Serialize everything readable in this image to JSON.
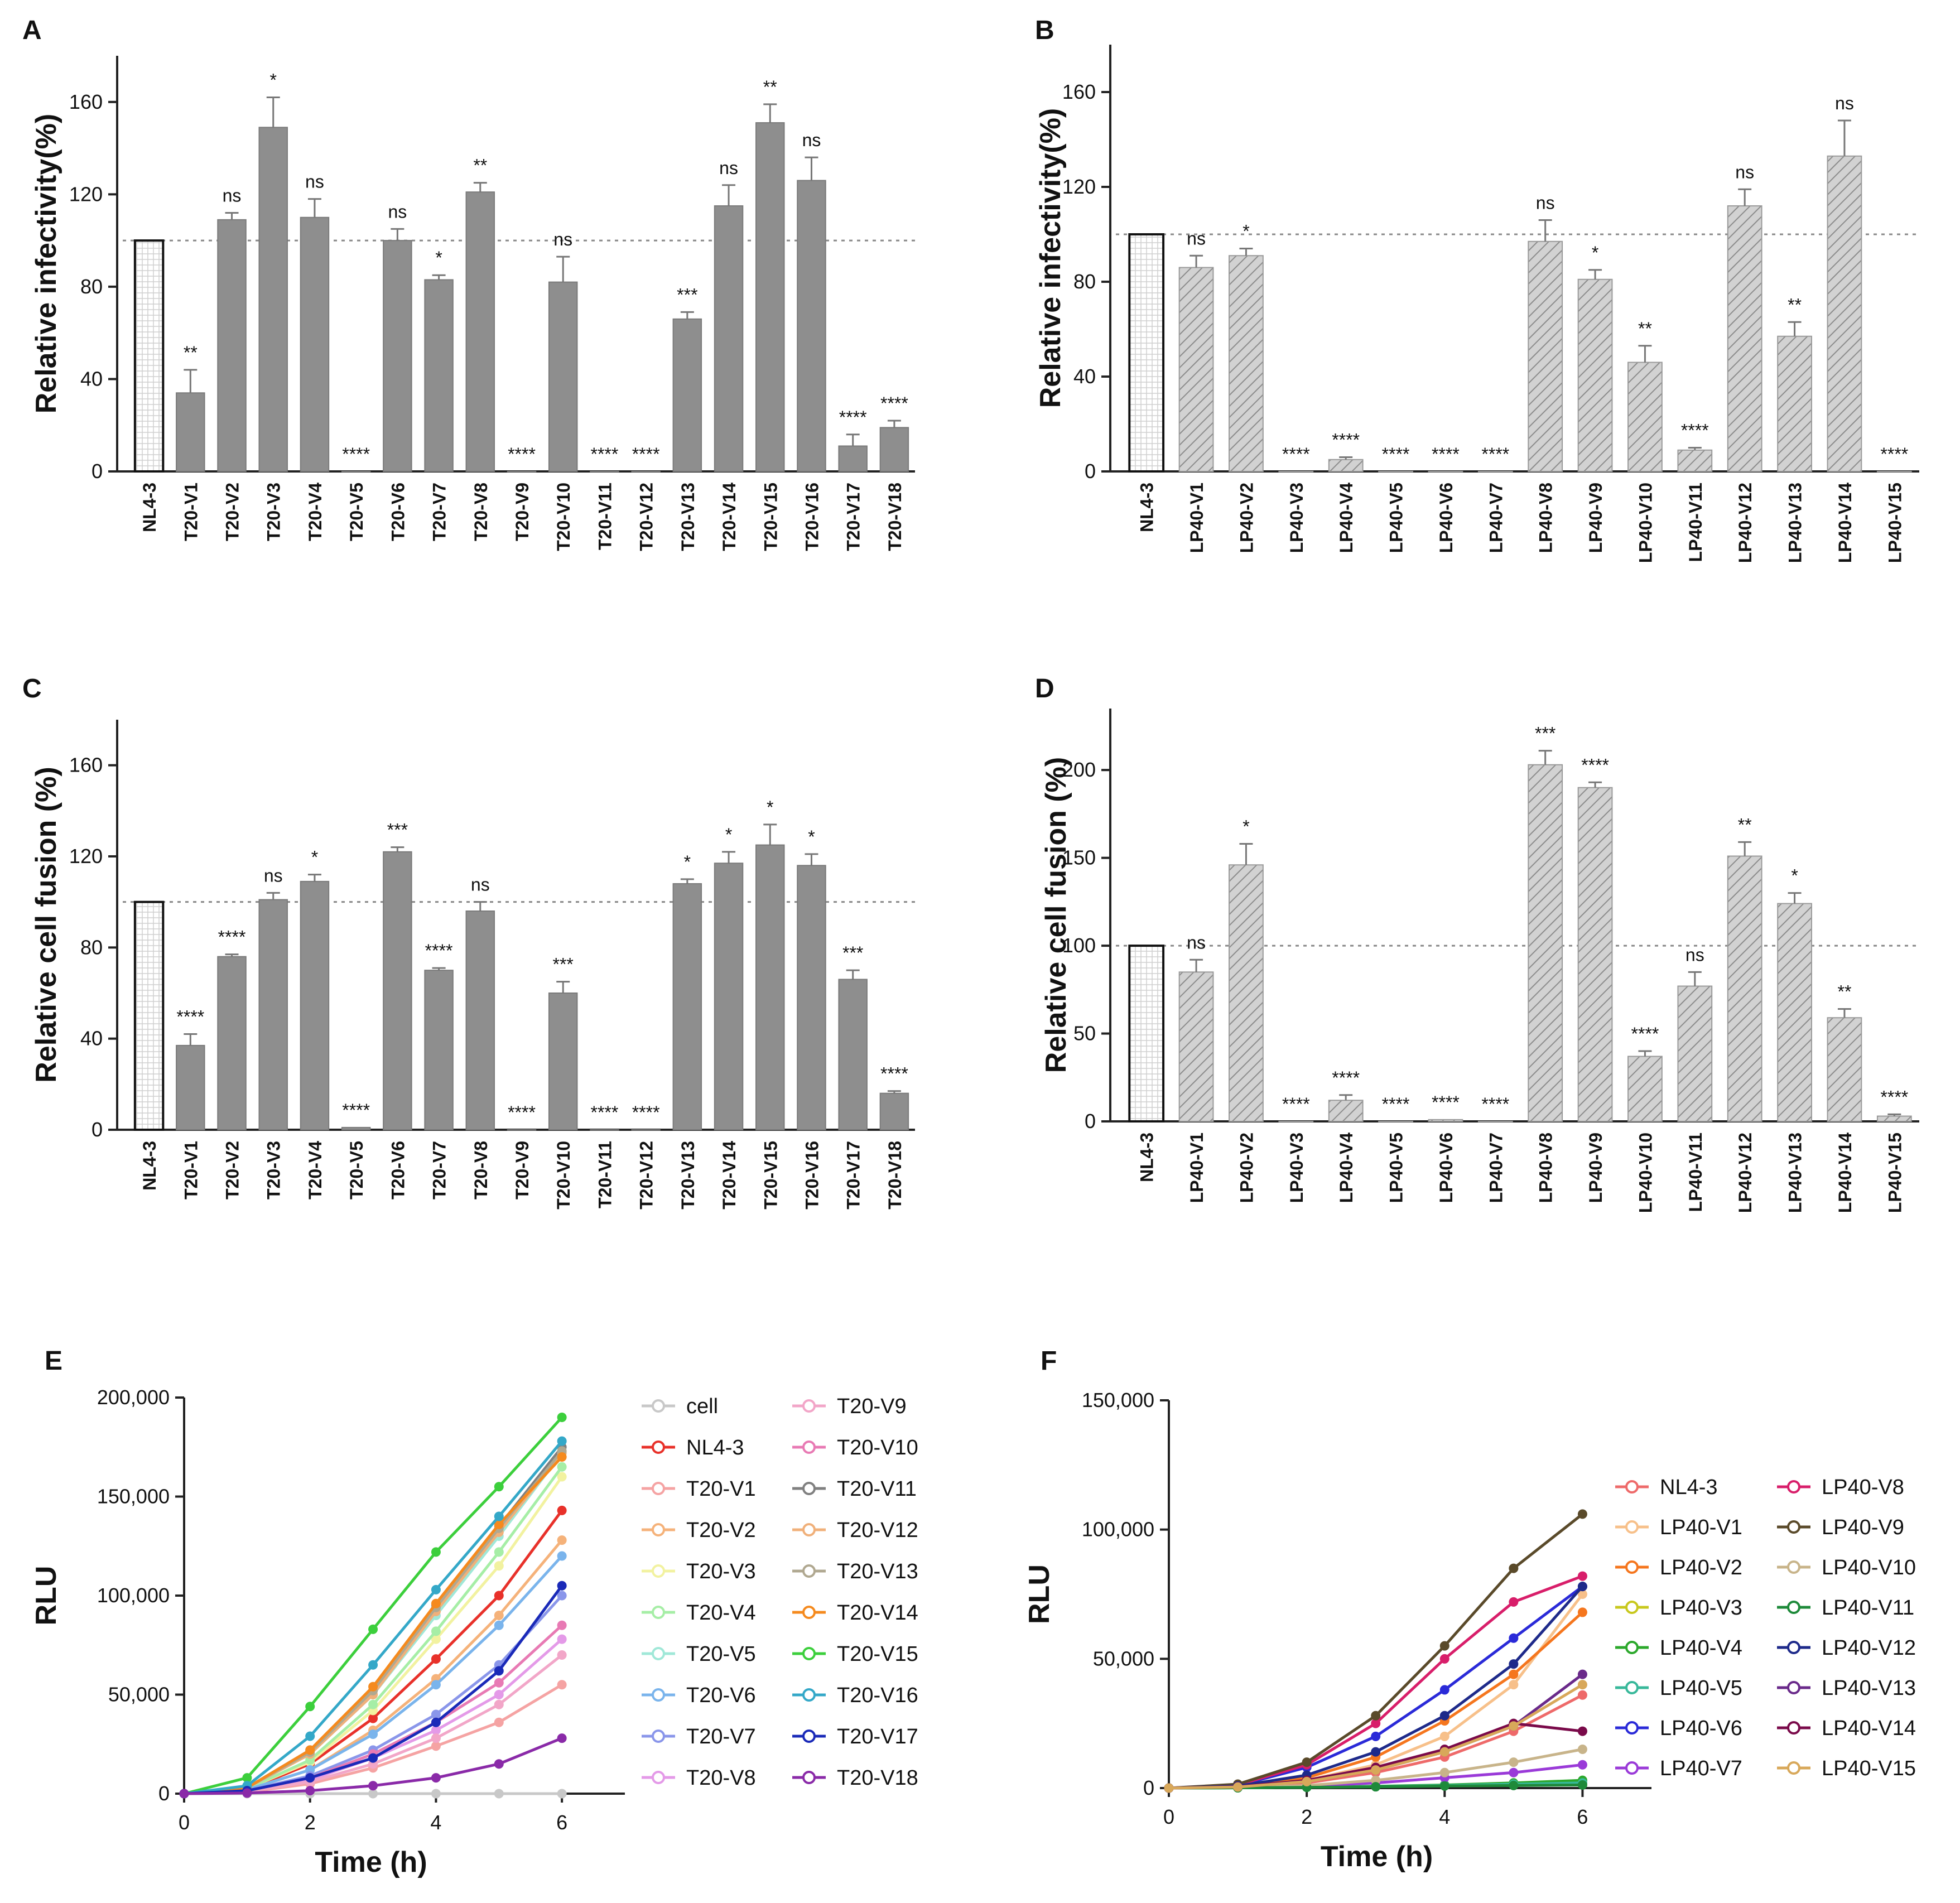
{
  "chart_data": [
    {
      "panel": "A",
      "type": "bar",
      "ylabel": "Relative infectivity(%)",
      "ylim": [
        0,
        180
      ],
      "yticks": [
        0,
        40,
        80,
        120,
        160
      ],
      "reference_line": 100,
      "categories": [
        "NL4-3",
        "T20-V1",
        "T20-V2",
        "T20-V3",
        "T20-V4",
        "T20-V5",
        "T20-V6",
        "T20-V7",
        "T20-V8",
        "T20-V9",
        "T20-V10",
        "T20-V11",
        "T20-V12",
        "T20-V13",
        "T20-V14",
        "T20-V15",
        "T20-V16",
        "T20-V17",
        "T20-V18"
      ],
      "values": [
        100,
        34,
        109,
        149,
        110,
        0,
        100,
        83,
        121,
        0,
        82,
        0,
        0,
        66,
        115,
        151,
        126,
        11,
        19
      ],
      "errors": [
        0,
        10,
        3,
        13,
        8,
        0,
        5,
        2,
        4,
        0,
        11,
        0,
        0,
        3,
        9,
        8,
        10,
        5,
        3
      ],
      "significance": [
        "",
        "**",
        "ns",
        "*",
        "ns",
        "****",
        "ns",
        "*",
        "**",
        "****",
        "ns",
        "****",
        "****",
        "***",
        "ns",
        "**",
        "ns",
        "****",
        "****"
      ]
    },
    {
      "panel": "B",
      "type": "bar",
      "ylabel": "Relative infectivity(%)",
      "ylim": [
        0,
        180
      ],
      "yticks": [
        0,
        40,
        80,
        120,
        160
      ],
      "reference_line": 100,
      "categories": [
        "NL4-3",
        "LP40-V1",
        "LP40-V2",
        "LP40-V3",
        "LP40-V4",
        "LP40-V5",
        "LP40-V6",
        "LP40-V7",
        "LP40-V8",
        "LP40-V9",
        "LP40-V10",
        "LP40-V11",
        "LP40-V12",
        "LP40-V13",
        "LP40-V14",
        "LP40-V15"
      ],
      "values": [
        100,
        86,
        91,
        0,
        5,
        0,
        0,
        0,
        97,
        81,
        46,
        9,
        112,
        57,
        133,
        0
      ],
      "errors": [
        0,
        5,
        3,
        0,
        1,
        0,
        0,
        0,
        9,
        4,
        7,
        1,
        7,
        6,
        15,
        0
      ],
      "significance": [
        "",
        "ns",
        "*",
        "****",
        "****",
        "****",
        "****",
        "****",
        "ns",
        "*",
        "**",
        "****",
        "ns",
        "**",
        "ns",
        "****"
      ]
    },
    {
      "panel": "C",
      "type": "bar",
      "ylabel": "Relative cell fusion (%)",
      "ylim": [
        0,
        180
      ],
      "yticks": [
        0,
        40,
        80,
        120,
        160
      ],
      "reference_line": 100,
      "categories": [
        "NL4-3",
        "T20-V1",
        "T20-V2",
        "T20-V3",
        "T20-V4",
        "T20-V5",
        "T20-V6",
        "T20-V7",
        "T20-V8",
        "T20-V9",
        "T20-V10",
        "T20-V11",
        "T20-V12",
        "T20-V13",
        "T20-V14",
        "T20-V15",
        "T20-V16",
        "T20-V17",
        "T20-V18"
      ],
      "values": [
        100,
        37,
        76,
        101,
        109,
        1,
        122,
        70,
        96,
        0,
        60,
        0,
        0,
        108,
        117,
        125,
        116,
        66,
        16
      ],
      "errors": [
        0,
        5,
        1,
        3,
        3,
        0,
        2,
        1,
        4,
        0,
        5,
        0,
        0,
        2,
        5,
        9,
        5,
        4,
        1
      ],
      "significance": [
        "",
        "****",
        "****",
        "ns",
        "*",
        "****",
        "***",
        "****",
        "ns",
        "****",
        "***",
        "****",
        "****",
        "*",
        "*",
        "*",
        "*",
        "***",
        "****"
      ]
    },
    {
      "panel": "D",
      "type": "bar",
      "ylabel": "Relative cell fusion (%)",
      "ylim": [
        0,
        235
      ],
      "yticks": [
        0,
        50,
        100,
        150,
        200
      ],
      "reference_line": 100,
      "categories": [
        "NL4-3",
        "LP40-V1",
        "LP40-V2",
        "LP40-V3",
        "LP40-V4",
        "LP40-V5",
        "LP40-V6",
        "LP40-V7",
        "LP40-V8",
        "LP40-V9",
        "LP40-V10",
        "LP40-V11",
        "LP40-V12",
        "LP40-V13",
        "LP40-V14",
        "LP40-V15"
      ],
      "values": [
        100,
        85,
        146,
        0,
        12,
        0,
        1,
        0,
        203,
        190,
        37,
        77,
        151,
        124,
        59,
        3
      ],
      "errors": [
        0,
        7,
        12,
        0,
        3,
        0,
        0,
        0,
        8,
        3,
        3,
        8,
        8,
        6,
        5,
        1
      ],
      "significance": [
        "",
        "ns",
        "*",
        "****",
        "****",
        "****",
        "****",
        "****",
        "***",
        "****",
        "****",
        "ns",
        "**",
        "*",
        "**",
        "****"
      ]
    },
    {
      "panel": "E",
      "type": "line",
      "xlabel": "Time (h)",
      "ylabel": "RLU",
      "xlim": [
        0,
        7
      ],
      "ylim": [
        0,
        200000
      ],
      "xticks": [
        0,
        2,
        4,
        6
      ],
      "yticks": [
        0,
        50000,
        100000,
        150000,
        200000
      ],
      "ytick_labels": [
        "0",
        "50,000",
        "100,000",
        "150,000",
        "200,000"
      ],
      "x": [
        0,
        1,
        2,
        3,
        4,
        5,
        6
      ],
      "series": [
        {
          "name": "cell",
          "color": "#c8c8c8",
          "values": [
            0,
            0,
            0,
            0,
            0,
            0,
            0
          ]
        },
        {
          "name": "NL4-3",
          "color": "#e8312a",
          "values": [
            0,
            2000,
            15000,
            38000,
            68000,
            100000,
            143000
          ]
        },
        {
          "name": "T20-V1",
          "color": "#f5a3a3",
          "values": [
            0,
            800,
            5000,
            13000,
            24000,
            36000,
            55000
          ]
        },
        {
          "name": "T20-V2",
          "color": "#f5b27a",
          "values": [
            0,
            2000,
            12000,
            32000,
            58000,
            90000,
            128000
          ]
        },
        {
          "name": "T20-V3",
          "color": "#f2f2a0",
          "values": [
            0,
            2500,
            16000,
            42000,
            78000,
            115000,
            160000
          ]
        },
        {
          "name": "T20-V4",
          "color": "#a6eea6",
          "values": [
            0,
            2500,
            17000,
            45000,
            82000,
            122000,
            165000
          ]
        },
        {
          "name": "T20-V5",
          "color": "#a0e8d8",
          "values": [
            0,
            3000,
            20000,
            50000,
            90000,
            130000,
            172000
          ]
        },
        {
          "name": "T20-V6",
          "color": "#7ab4ec",
          "values": [
            0,
            2000,
            12000,
            30000,
            55000,
            85000,
            120000
          ]
        },
        {
          "name": "T20-V7",
          "color": "#8a96ea",
          "values": [
            0,
            1500,
            9000,
            22000,
            40000,
            65000,
            100000
          ]
        },
        {
          "name": "T20-V8",
          "color": "#e49ae8",
          "values": [
            0,
            1200,
            7000,
            18000,
            32000,
            50000,
            78000
          ]
        },
        {
          "name": "T20-V9",
          "color": "#f2a6c8",
          "values": [
            0,
            1000,
            6000,
            15000,
            28000,
            45000,
            70000
          ]
        },
        {
          "name": "T20-V10",
          "color": "#e87ab4",
          "values": [
            0,
            1500,
            8000,
            20000,
            36000,
            56000,
            85000
          ]
        },
        {
          "name": "T20-V11",
          "color": "#808080",
          "values": [
            0,
            3000,
            22000,
            52000,
            95000,
            135000,
            175000
          ]
        },
        {
          "name": "T20-V12",
          "color": "#f0b07a",
          "values": [
            0,
            3000,
            20000,
            50000,
            92000,
            132000,
            172000
          ]
        },
        {
          "name": "T20-V13",
          "color": "#b0a890",
          "values": [
            0,
            3000,
            21000,
            52000,
            94000,
            134000,
            173000
          ]
        },
        {
          "name": "T20-V14",
          "color": "#f58a1e",
          "values": [
            0,
            3000,
            22000,
            54000,
            96000,
            136000,
            170000
          ]
        },
        {
          "name": "T20-V15",
          "color": "#3ccf3c",
          "values": [
            0,
            8000,
            44000,
            83000,
            122000,
            155000,
            190000
          ]
        },
        {
          "name": "T20-V16",
          "color": "#34a8c8",
          "values": [
            0,
            4000,
            29000,
            65000,
            103000,
            140000,
            178000
          ]
        },
        {
          "name": "T20-V17",
          "color": "#1a2ab8",
          "values": [
            0,
            1500,
            8000,
            18000,
            36000,
            62000,
            105000
          ]
        },
        {
          "name": "T20-V18",
          "color": "#8a2aa8",
          "values": [
            0,
            300,
            1500,
            4000,
            8000,
            15000,
            28000
          ]
        }
      ]
    },
    {
      "panel": "F",
      "type": "line",
      "xlabel": "Time (h)",
      "ylabel": "RLU",
      "xlim": [
        0,
        7
      ],
      "ylim": [
        0,
        150000
      ],
      "xticks": [
        0,
        2,
        4,
        6
      ],
      "yticks": [
        0,
        50000,
        100000,
        150000
      ],
      "ytick_labels": [
        "0",
        "50,000",
        "100,000",
        "150,000"
      ],
      "x": [
        0,
        1,
        2,
        3,
        4,
        5,
        6
      ],
      "series": [
        {
          "name": "NL4-3",
          "color": "#ee6a6a",
          "values": [
            0,
            500,
            2000,
            6000,
            12000,
            22000,
            36000
          ]
        },
        {
          "name": "LP40-V1",
          "color": "#f7c08a",
          "values": [
            0,
            500,
            3000,
            9000,
            20000,
            40000,
            75000
          ]
        },
        {
          "name": "LP40-V2",
          "color": "#f5761e",
          "values": [
            0,
            600,
            4000,
            12000,
            26000,
            44000,
            68000
          ]
        },
        {
          "name": "LP40-V3",
          "color": "#c8c81e",
          "values": [
            0,
            100,
            300,
            600,
            900,
            1200,
            1500
          ]
        },
        {
          "name": "LP40-V4",
          "color": "#2ca82c",
          "values": [
            0,
            100,
            300,
            700,
            1200,
            2000,
            3000
          ]
        },
        {
          "name": "LP40-V5",
          "color": "#38b89a",
          "values": [
            0,
            100,
            300,
            600,
            1000,
            1500,
            2000
          ]
        },
        {
          "name": "LP40-V6",
          "color": "#2a2ad8",
          "values": [
            0,
            1000,
            8000,
            20000,
            38000,
            58000,
            78000
          ]
        },
        {
          "name": "LP40-V7",
          "color": "#9a3ad8",
          "values": [
            0,
            200,
            800,
            2000,
            4000,
            6000,
            9000
          ]
        },
        {
          "name": "LP40-V8",
          "color": "#d81e6a",
          "values": [
            0,
            1200,
            9000,
            25000,
            50000,
            72000,
            82000
          ]
        },
        {
          "name": "LP40-V9",
          "color": "#5a4a2a",
          "values": [
            0,
            1500,
            10000,
            28000,
            55000,
            85000,
            106000
          ]
        },
        {
          "name": "LP40-V10",
          "color": "#c8b48a",
          "values": [
            0,
            200,
            1000,
            3000,
            6000,
            10000,
            15000
          ]
        },
        {
          "name": "LP40-V11",
          "color": "#1e8a3a",
          "values": [
            0,
            100,
            300,
            500,
            800,
            1000,
            1200
          ]
        },
        {
          "name": "LP40-V12",
          "color": "#1e2a8a",
          "values": [
            0,
            800,
            5000,
            14000,
            28000,
            48000,
            78000
          ]
        },
        {
          "name": "LP40-V13",
          "color": "#6a2a8a",
          "values": [
            0,
            500,
            2500,
            7000,
            14000,
            24000,
            44000
          ]
        },
        {
          "name": "LP40-V14",
          "color": "#7a0a4a",
          "values": [
            0,
            500,
            3000,
            8000,
            15000,
            25000,
            22000
          ]
        },
        {
          "name": "LP40-V15",
          "color": "#d8a85a",
          "values": [
            0,
            400,
            2500,
            7000,
            14000,
            24000,
            40000
          ]
        }
      ]
    }
  ]
}
